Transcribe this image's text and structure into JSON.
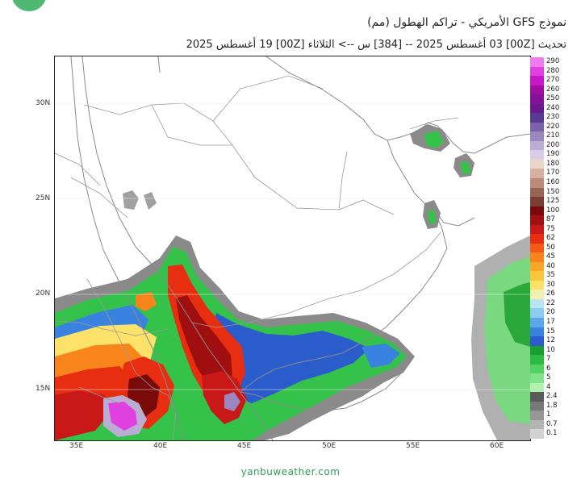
{
  "header": {
    "title": "نموذج GFS الأمريكي  - تراكم الهطول (مم)",
    "subtitle": "تحديث [00Z] 03 أغسطس 2025 -- [384] س --> الثلاثاء [00Z] 19 أغسطس 2025"
  },
  "map": {
    "lat_labels": [
      "30N",
      "25N",
      "20N",
      "15N"
    ],
    "lon_labels": [
      "35E",
      "40E",
      "45E",
      "50E",
      "55E",
      "60E"
    ],
    "colors": {
      "land": "#ffffff",
      "borders": "#9a9a9a",
      "coast": "#8a8a8a"
    }
  },
  "legend": {
    "items": [
      {
        "label": "290",
        "color": "#f07af0"
      },
      {
        "label": "280",
        "color": "#e040e0"
      },
      {
        "label": "270",
        "color": "#c817c8"
      },
      {
        "label": "260",
        "color": "#a00ea0"
      },
      {
        "label": "250",
        "color": "#86109a"
      },
      {
        "label": "240",
        "color": "#6a1a8e"
      },
      {
        "label": "230",
        "color": "#5b3a94"
      },
      {
        "label": "220",
        "color": "#7c62aa"
      },
      {
        "label": "210",
        "color": "#9c86c0"
      },
      {
        "label": "200",
        "color": "#bbacd4"
      },
      {
        "label": "190",
        "color": "#d8cce6"
      },
      {
        "label": "180",
        "color": "#ecd6cc"
      },
      {
        "label": "170",
        "color": "#d8b0a0"
      },
      {
        "label": "160",
        "color": "#bd8a78"
      },
      {
        "label": "150",
        "color": "#9a6454"
      },
      {
        "label": "125",
        "color": "#7c3e32"
      },
      {
        "label": "100",
        "color": "#7a0a0a"
      },
      {
        "label": "87",
        "color": "#a00f0f"
      },
      {
        "label": "75",
        "color": "#c81818"
      },
      {
        "label": "62",
        "color": "#e82e10"
      },
      {
        "label": "50",
        "color": "#f45a14"
      },
      {
        "label": "45",
        "color": "#f7851c"
      },
      {
        "label": "40",
        "color": "#f9a626"
      },
      {
        "label": "35",
        "color": "#fbc53c"
      },
      {
        "label": "30",
        "color": "#fde26a"
      },
      {
        "label": "26",
        "color": "#f2f0b0"
      },
      {
        "label": "22",
        "color": "#b8e4f4"
      },
      {
        "label": "20",
        "color": "#8cccf0"
      },
      {
        "label": "17",
        "color": "#5aa8ea"
      },
      {
        "label": "15",
        "color": "#3a82e0"
      },
      {
        "label": "12",
        "color": "#2a5ccc"
      },
      {
        "label": "10",
        "color": "#1a9e32"
      },
      {
        "label": "7",
        "color": "#2cbc44"
      },
      {
        "label": "6",
        "color": "#52d262"
      },
      {
        "label": "5",
        "color": "#82e288"
      },
      {
        "label": "4",
        "color": "#b2f0b0"
      },
      {
        "label": "2.4",
        "color": "#5a5a5a"
      },
      {
        "label": "1.8",
        "color": "#787878"
      },
      {
        "label": "1",
        "color": "#969696"
      },
      {
        "label": "0.7",
        "color": "#b4b4b4"
      },
      {
        "label": "0.1",
        "color": "#d2d2d2"
      }
    ]
  },
  "footer": {
    "site": "yanbuweather.com"
  }
}
